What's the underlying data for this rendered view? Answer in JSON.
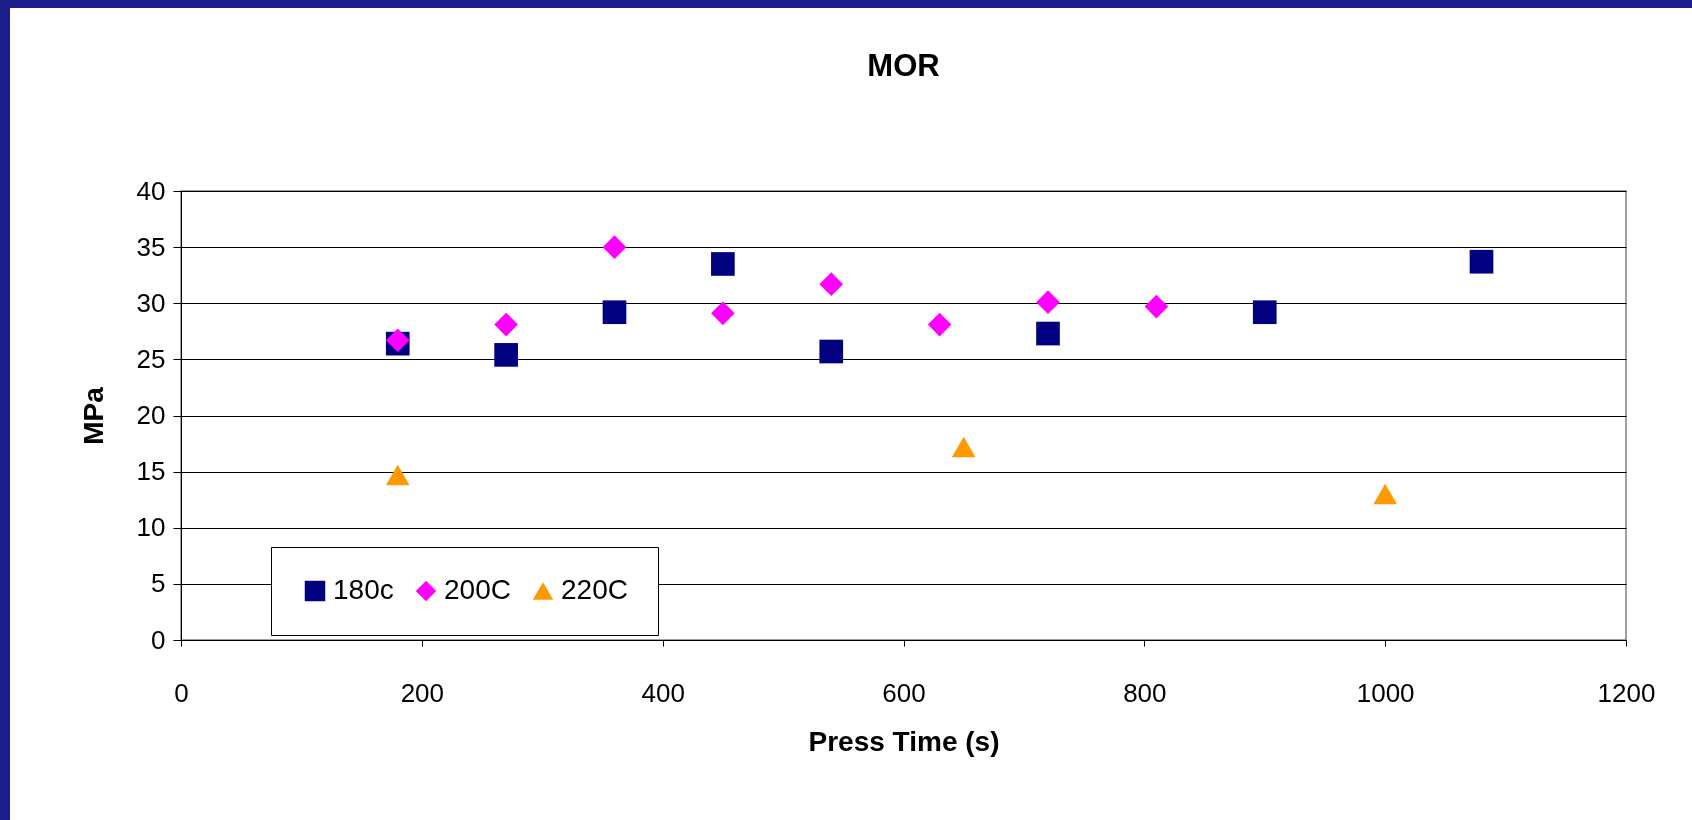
{
  "chart_data": {
    "type": "scatter",
    "title": "MOR",
    "xlabel": "Press Time (s)",
    "ylabel": "MPa",
    "xlim": [
      0,
      1200
    ],
    "xticks": [
      0,
      200,
      400,
      600,
      800,
      1000,
      1200
    ],
    "ylim": [
      0,
      40
    ],
    "yticks": [
      0,
      5,
      10,
      15,
      20,
      25,
      30,
      35,
      40
    ],
    "grid": "y",
    "legend": "bottom left",
    "series": [
      {
        "name": "180c",
        "color": "#000080",
        "marker": "square",
        "x": [
          180,
          270,
          360,
          450,
          540,
          720,
          900,
          1080
        ],
        "values": [
          26.4,
          25.4,
          29.2,
          33.5,
          25.7,
          27.3,
          29.2,
          33.7
        ]
      },
      {
        "name": "200C",
        "color": "#ff00ff",
        "marker": "diamond",
        "x": [
          180,
          270,
          360,
          450,
          540,
          630,
          720,
          810
        ],
        "values": [
          26.7,
          28.1,
          35.0,
          29.1,
          31.7,
          28.1,
          30.1,
          29.7
        ]
      },
      {
        "name": "220C",
        "color": "#ff9900",
        "marker": "triangle",
        "x": [
          180,
          650,
          1000
        ],
        "values": [
          14.7,
          17.2,
          13.0
        ]
      }
    ]
  }
}
